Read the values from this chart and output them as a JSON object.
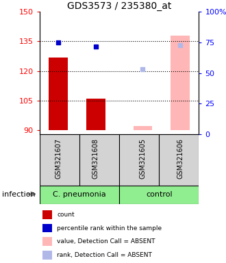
{
  "title": "GDS3573 / 235380_at",
  "samples": [
    "GSM321607",
    "GSM321608",
    "GSM321605",
    "GSM321606"
  ],
  "ylim_left": [
    88,
    150
  ],
  "ylim_right": [
    0,
    100
  ],
  "yticks_left": [
    90,
    105,
    120,
    135,
    150
  ],
  "yticks_right": [
    0,
    25,
    50,
    75,
    100
  ],
  "ytick_labels_right": [
    "0",
    "25",
    "50",
    "75",
    "100%"
  ],
  "bar_values": [
    127,
    106,
    92,
    138
  ],
  "bar_colors": [
    "#cc0000",
    "#cc0000",
    "#ffb6b6",
    "#ffb6b6"
  ],
  "dot_values": [
    134.5,
    132.5,
    null,
    null
  ],
  "dot_color": "#0000cc",
  "rank_dot_values": [
    null,
    null,
    121,
    133
  ],
  "rank_dot_color": "#b0b8e8",
  "dotted_lines": [
    105,
    120,
    135
  ],
  "base_value": 90,
  "group_divider": 2,
  "legend_items": [
    {
      "color": "#cc0000",
      "label": "count"
    },
    {
      "color": "#0000cc",
      "label": "percentile rank within the sample"
    },
    {
      "color": "#ffb6b6",
      "label": "value, Detection Call = ABSENT"
    },
    {
      "color": "#b0b8e8",
      "label": "rank, Detection Call = ABSENT"
    }
  ],
  "group_names": [
    "C. pneumonia",
    "control"
  ],
  "group_color": "#90ee90",
  "sample_box_color": "#d3d3d3",
  "infection_label": "infection"
}
